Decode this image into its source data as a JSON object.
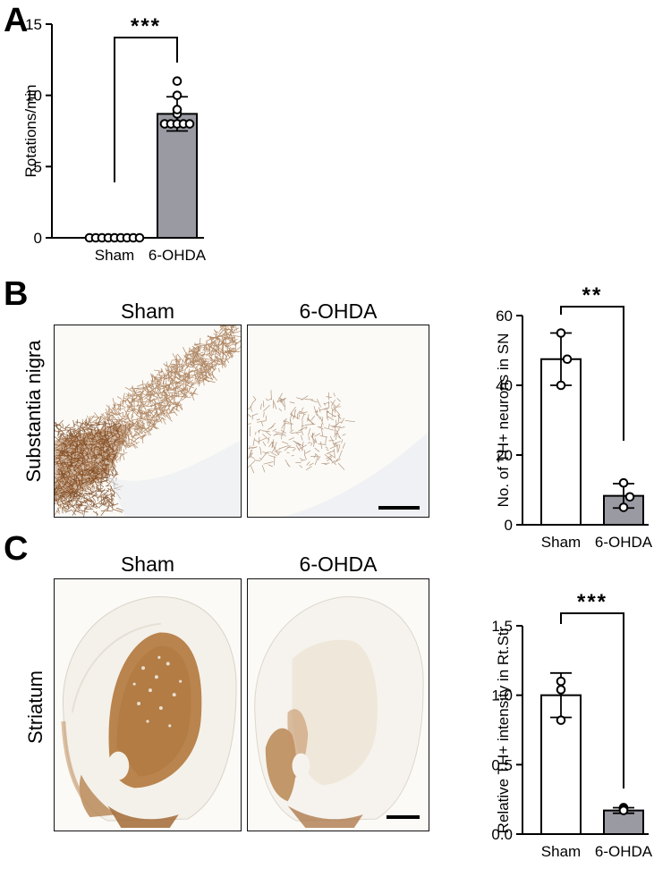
{
  "panels": {
    "a": {
      "letter": "A"
    },
    "b": {
      "letter": "B",
      "row_label": "Substantia nigra",
      "col_sham": "Sham",
      "col_ohda": "6-OHDA"
    },
    "c": {
      "letter": "C",
      "row_label": "Striatum",
      "col_sham": "Sham",
      "col_ohda": "6-OHDA"
    }
  },
  "colors": {
    "sham_fill": "#ffffff",
    "ohda_fill": "#9a9aa3",
    "stain": "#a8672f",
    "ink": "#000000"
  },
  "chart_data": [
    {
      "id": "A",
      "type": "bar",
      "categories": [
        "Sham",
        "6-OHDA"
      ],
      "values": [
        0,
        8.7
      ],
      "errors": [
        0,
        1.2
      ],
      "points": [
        [
          0,
          0,
          0,
          0,
          0,
          0,
          0,
          0,
          0
        ],
        [
          8.0,
          8.0,
          8.0,
          8.0,
          8.0,
          8.7,
          9.0,
          10.0,
          11.0
        ]
      ],
      "xlabel": "",
      "ylabel": "Rotations/min",
      "ylim": [
        0,
        15
      ],
      "yticks": [
        0,
        5,
        10,
        15
      ],
      "significance": "***",
      "grid": false
    },
    {
      "id": "B",
      "type": "bar",
      "categories": [
        "Sham",
        "6-OHDA"
      ],
      "values": [
        47.5,
        8.3
      ],
      "errors": [
        7.5,
        3.5
      ],
      "points": [
        [
          55,
          47.5,
          40
        ],
        [
          12,
          8,
          5
        ]
      ],
      "xlabel": "",
      "ylabel": "No. of TH+ neurons in SN",
      "ylim": [
        0,
        60
      ],
      "yticks": [
        0,
        20,
        40,
        60
      ],
      "significance": "**",
      "grid": false
    },
    {
      "id": "C",
      "type": "bar",
      "categories": [
        "Sham",
        "6-OHDA"
      ],
      "values": [
        1.0,
        0.17
      ],
      "errors": [
        0.16,
        0.02
      ],
      "points": [
        [
          1.1,
          1.04,
          0.82
        ],
        [
          0.19,
          0.18,
          0.17
        ]
      ],
      "xlabel": "",
      "ylabel": "Relative TH+ intensity in Rt.Str",
      "ylim": [
        0,
        1.5
      ],
      "yticks": [
        0,
        0.5,
        1.0,
        1.5
      ],
      "tick_labels": [
        "0.0",
        "0.5",
        "1.0",
        "1.5"
      ],
      "significance": "***",
      "grid": false
    }
  ]
}
